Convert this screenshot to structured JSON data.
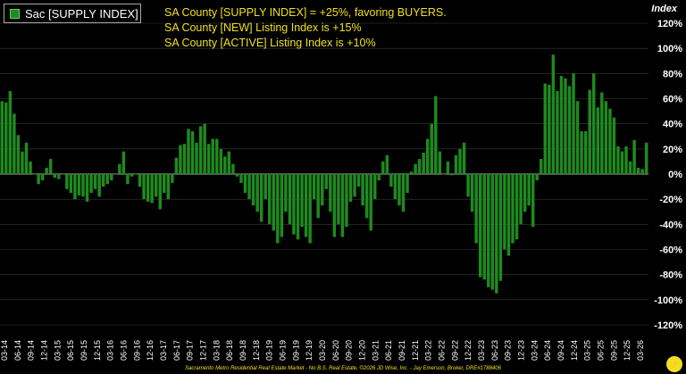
{
  "legend": {
    "label": "Sac [SUPPLY INDEX]",
    "color": "#1f8a1f"
  },
  "notes": {
    "line1": "SA County [SUPPLY INDEX] = +25%, favoring BUYERS.",
    "line2": "SA County [NEW] Listing Index is +15%",
    "line3": "SA County [ACTIVE] Listing Index is +10%"
  },
  "axis_title": "Index",
  "footer": "Sacramento Metro Residential Real Estate Market - No B.S. Real Estate, ©2026 JD Wise, Inc. - Jay Emerson, Broker, DRE#1788406",
  "logo_glyph": "⚡",
  "colors": {
    "bar": "#1f8a1f",
    "grid": "#3a3a3a",
    "accent_text": "#f0e020"
  },
  "chart_data": {
    "type": "bar",
    "ylabel": "Index",
    "ylim": [
      -120,
      120
    ],
    "yticks": [
      -120,
      -100,
      -80,
      -60,
      -40,
      -20,
      0,
      20,
      40,
      60,
      80,
      100,
      120
    ],
    "ytick_labels": [
      "-120%",
      "-100%",
      "-80%",
      "-60%",
      "-40%",
      "-20%",
      "0%",
      "20%",
      "40%",
      "60%",
      "80%",
      "100%",
      "120%"
    ],
    "xtick_labels": [
      "03-14",
      "06-14",
      "09-14",
      "12-14",
      "03-15",
      "06-15",
      "09-15",
      "12-15",
      "03-16",
      "06-16",
      "09-16",
      "12-16",
      "03-17",
      "06-17",
      "09-17",
      "12-17",
      "03-18",
      "06-18",
      "09-18",
      "12-18",
      "03-19",
      "06-19",
      "09-19",
      "12-19",
      "03-20",
      "06-20",
      "09-20",
      "12-20",
      "03-21",
      "06-21",
      "09-21",
      "12-21",
      "03-22",
      "06-22",
      "09-22",
      "12-22",
      "03-23",
      "06-23",
      "09-23",
      "12-23",
      "03-24",
      "06-24",
      "09-24",
      "12-24",
      "03-25",
      "06-25",
      "09-25",
      "12-25",
      "03-26"
    ],
    "start": "03-14",
    "series": [
      {
        "name": "Sac [SUPPLY INDEX]",
        "values": [
          58,
          57,
          66,
          48,
          31,
          18,
          25,
          10,
          0,
          -8,
          -5,
          5,
          12,
          -3,
          -4,
          0,
          -12,
          -15,
          -20,
          -17,
          -18,
          -22,
          -15,
          -12,
          -18,
          -10,
          -8,
          -5,
          0,
          8,
          18,
          -8,
          -2,
          0,
          -10,
          -20,
          -22,
          -23,
          -18,
          -28,
          -15,
          -20,
          -7,
          13,
          23,
          24,
          36,
          34,
          25,
          38,
          40,
          24,
          28,
          28,
          20,
          14,
          18,
          8,
          -2,
          -7,
          -15,
          -20,
          -25,
          -30,
          -38,
          -20,
          -40,
          -45,
          -55,
          -50,
          -30,
          -40,
          -48,
          -52,
          -42,
          -50,
          -55,
          -20,
          -35,
          -25,
          -12,
          -30,
          -50,
          -40,
          -50,
          -42,
          -22,
          -18,
          -10,
          -25,
          -35,
          -45,
          -20,
          -5,
          10,
          15,
          -10,
          -20,
          -25,
          -30,
          -15,
          2,
          8,
          12,
          17,
          28,
          40,
          62,
          18,
          0,
          10,
          -1,
          15,
          20,
          25,
          -18,
          -30,
          -55,
          -82,
          -84,
          -90,
          -92,
          -95,
          -85,
          -60,
          -65,
          -55,
          -52,
          -40,
          -30,
          -25,
          -42,
          -5,
          12,
          72,
          71,
          95,
          66,
          78,
          76,
          70,
          80,
          58,
          34,
          34,
          67,
          80,
          53,
          65,
          58,
          52,
          45,
          22,
          18,
          22,
          10,
          27,
          5,
          4,
          25
        ],
        "color": "#1f8a1f"
      }
    ]
  }
}
